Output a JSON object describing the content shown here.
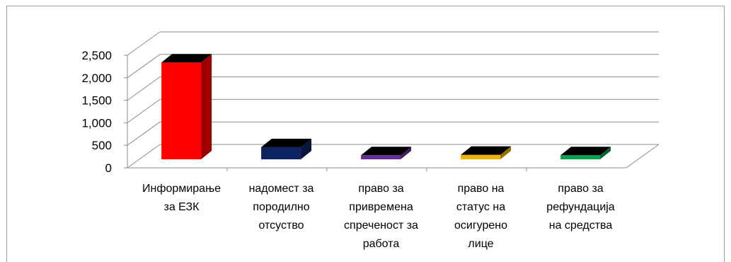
{
  "chart_data": {
    "type": "bar",
    "style": "3d-column",
    "categories": [
      "Информирање за ЕЗК",
      "надомест за породилно отсуство",
      "право за привремена спреченост за работа",
      "право на статус на осигурено лице",
      "право за рефундација на средства"
    ],
    "category_label_lines": [
      [
        "Информирање",
        "за ЕЗК"
      ],
      [
        "надомест за",
        "породилно",
        "отсуство"
      ],
      [
        "право за",
        "привремена",
        "спреченост за",
        "работа"
      ],
      [
        "право на",
        "статус на",
        "осигурено",
        "лице"
      ],
      [
        "право за",
        "рефундација",
        "на средства"
      ]
    ],
    "values": [
      2150,
      270,
      90,
      100,
      90
    ],
    "colors": [
      "#ff0000",
      "#0d2263",
      "#6a2c9a",
      "#f0b400",
      "#0aa24a"
    ],
    "ylim": [
      0,
      2500
    ],
    "y_ticks": [
      0,
      500,
      1000,
      1500,
      2000,
      2500
    ],
    "y_tick_labels": [
      "0",
      "500",
      "1,000",
      "1,500",
      "2,000",
      "2,500"
    ],
    "grid": true,
    "legend": "none"
  }
}
